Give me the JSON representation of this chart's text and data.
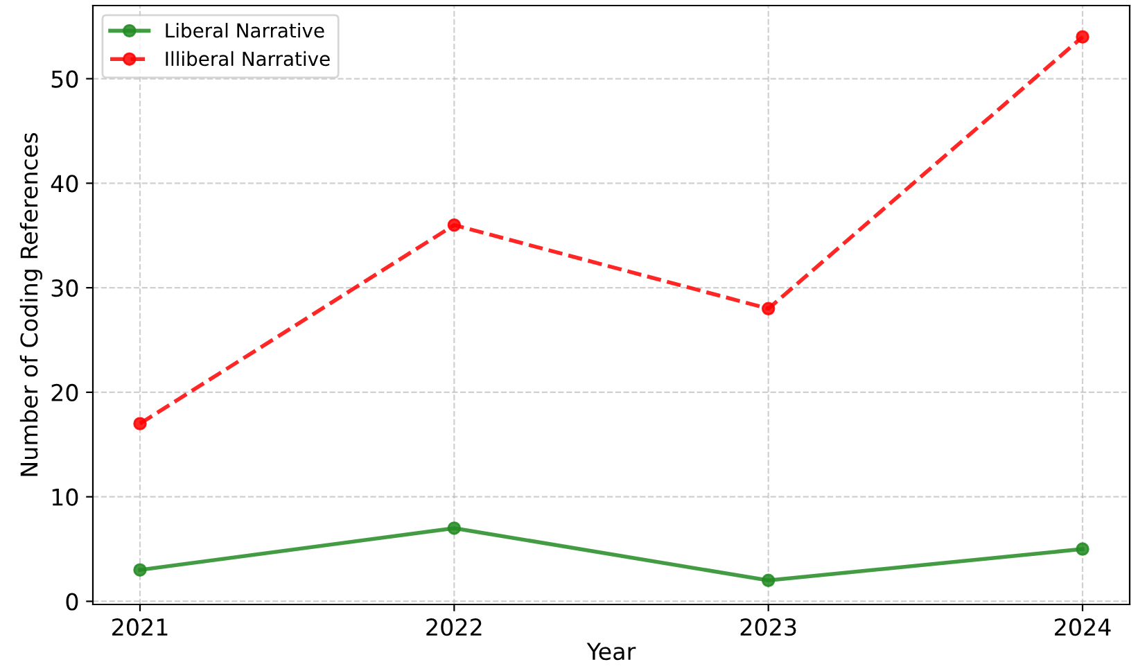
{
  "chart_data": {
    "type": "line",
    "xlabel": "Year",
    "ylabel": "Number of Coding References",
    "x": [
      2021,
      2022,
      2023,
      2024
    ],
    "series": [
      {
        "name": "Liberal Narrative",
        "color": "#228b22",
        "values": [
          3,
          7,
          2,
          5
        ],
        "line_style": "solid"
      },
      {
        "name": "Illiberal Narrative",
        "color": "#ff0000",
        "values": [
          17,
          36,
          28,
          54
        ],
        "line_style": "dashed"
      }
    ],
    "xlim": [
      2020.85,
      2024.15
    ],
    "xticks": [
      2021,
      2022,
      2023,
      2024
    ],
    "ylim": [
      -0.3,
      57
    ],
    "yticks": [
      0,
      10,
      20,
      30,
      40,
      50
    ],
    "grid": true,
    "legend": "top left",
    "marker": "circle"
  }
}
